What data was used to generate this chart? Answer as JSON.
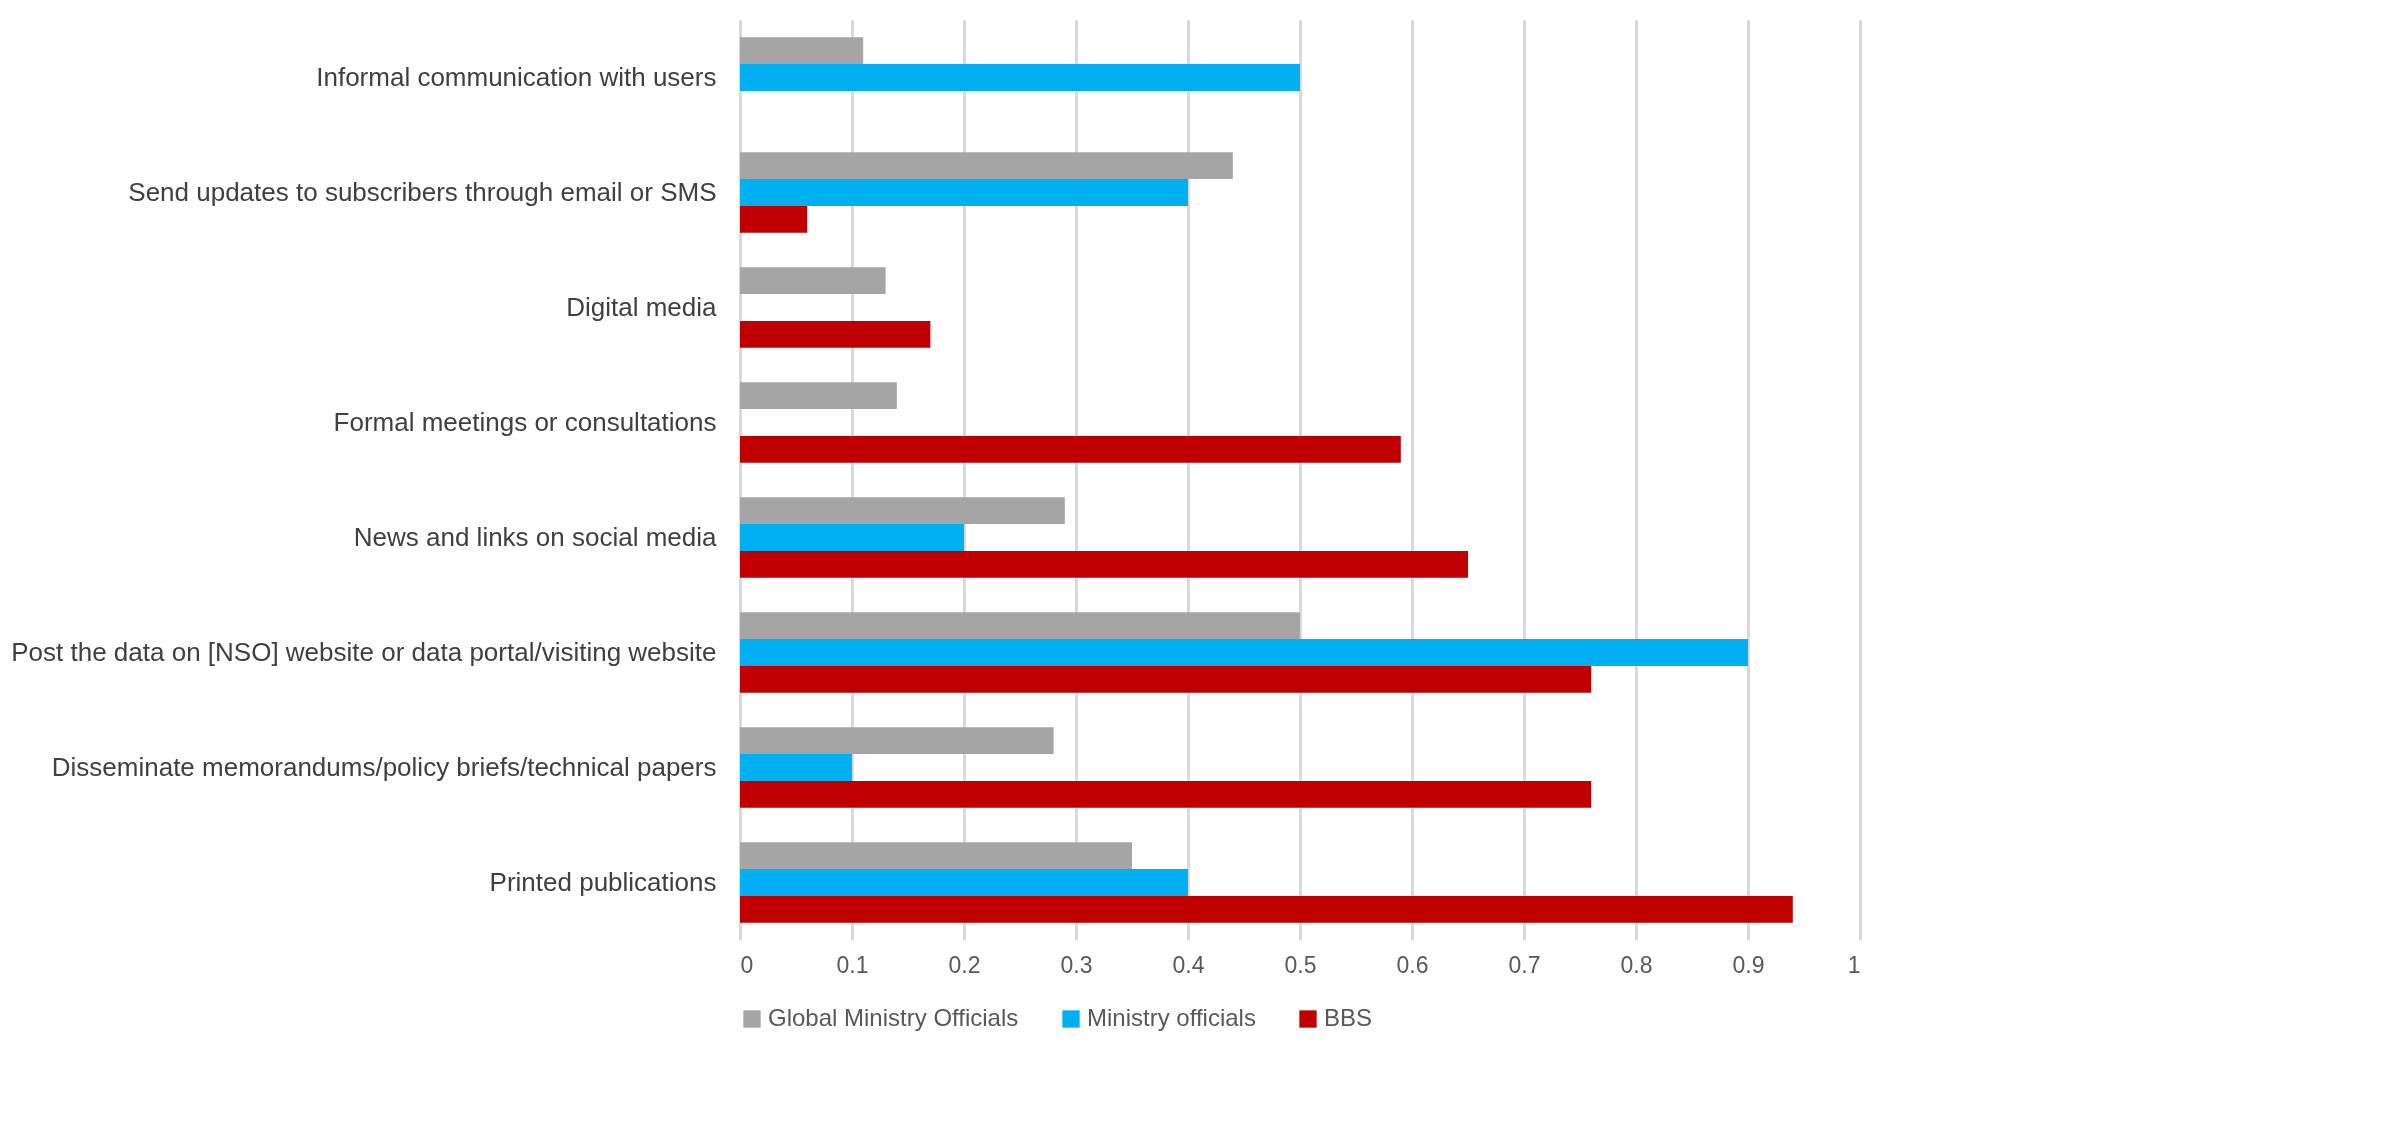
{
  "chart_data": {
    "type": "bar",
    "orientation": "horizontal",
    "categories": [
      "Informal communication with users",
      "Send updates to subscribers through email or SMS",
      "Digital media",
      "Formal meetings or consultations",
      "News and links on social media",
      "Post the data on [NSO] website or data portal/visiting website",
      "Disseminate memorandums/policy briefs/technical papers",
      "Printed publications"
    ],
    "series": [
      {
        "name": "Global Ministry Officials",
        "color": "#a5a5a5",
        "values": [
          0.11,
          0.44,
          0.13,
          0.14,
          0.29,
          0.5,
          0.28,
          0.35
        ]
      },
      {
        "name": "Ministry officials",
        "color": "#00b0f0",
        "values": [
          0.5,
          0.4,
          null,
          null,
          0.2,
          0.9,
          0.1,
          0.4
        ]
      },
      {
        "name": "BBS",
        "color": "#c00000",
        "values": [
          null,
          0.06,
          0.17,
          0.59,
          0.65,
          0.76,
          0.76,
          0.94
        ]
      }
    ],
    "xlim": [
      0,
      1
    ],
    "xticks": [
      0,
      {
        "value": 0.1,
        "label": "0.1"
      },
      {
        "value": 0.2,
        "label": "0.2"
      },
      {
        "value": 0.3,
        "label": "0.3"
      },
      {
        "value": 0.4,
        "label": "0.4"
      },
      {
        "value": 0.5,
        "label": "0.5"
      },
      {
        "value": 0.6,
        "label": "0.6"
      },
      {
        "value": 0.7,
        "label": "0.7"
      },
      {
        "value": 0.8,
        "label": "0.8"
      },
      {
        "value": 0.9,
        "label": "0.9"
      },
      1
    ],
    "grid": "x",
    "legend": "bottom"
  }
}
